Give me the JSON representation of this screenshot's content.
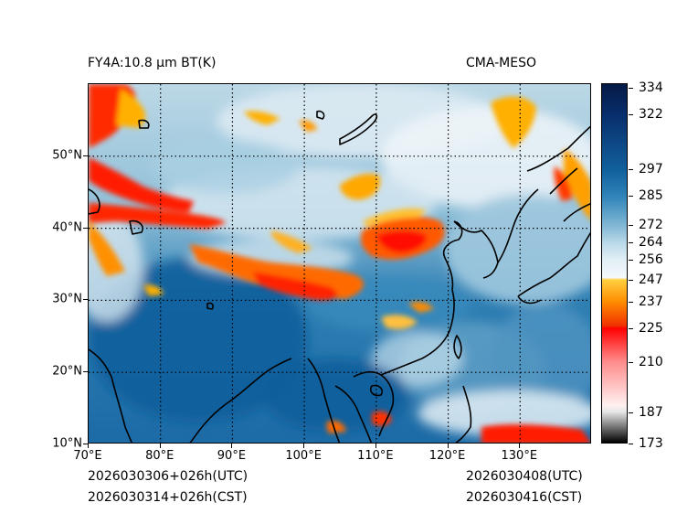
{
  "title_left": "FY4A:10.8 µm BT(K)",
  "title_right": "CMA-MESO",
  "footer": {
    "init_utc": "2026030306+026h(UTC)",
    "init_cst": "2026030314+026h(CST)",
    "valid_utc": "2026030408(UTC)",
    "valid_cst": "2026030416(CST)"
  },
  "map": {
    "lon_min": 70,
    "lon_max": 140,
    "lat_min": 10,
    "lat_max": 60,
    "lon_ticks": [
      {
        "value": 70,
        "label": "70°E"
      },
      {
        "value": 80,
        "label": "80°E"
      },
      {
        "value": 90,
        "label": "90°E"
      },
      {
        "value": 100,
        "label": "100°E"
      },
      {
        "value": 110,
        "label": "110°E"
      },
      {
        "value": 120,
        "label": "120°E"
      },
      {
        "value": 130,
        "label": "130°E"
      }
    ],
    "lat_ticks": [
      {
        "value": 10,
        "label": "10°N"
      },
      {
        "value": 20,
        "label": "20°N"
      },
      {
        "value": 30,
        "label": "30°N"
      },
      {
        "value": 40,
        "label": "40°N"
      },
      {
        "value": 50,
        "label": "50°N"
      }
    ],
    "gridline_style": "dotted"
  },
  "colorbar": {
    "min": 173,
    "max": 336,
    "ticks": [
      {
        "value": 173,
        "label": "173"
      },
      {
        "value": 187,
        "label": "187"
      },
      {
        "value": 210,
        "label": "210"
      },
      {
        "value": 225,
        "label": "225"
      },
      {
        "value": 237,
        "label": "237"
      },
      {
        "value": 247,
        "label": "247"
      },
      {
        "value": 256,
        "label": "256"
      },
      {
        "value": 264,
        "label": "264"
      },
      {
        "value": 272,
        "label": "272"
      },
      {
        "value": 285,
        "label": "285"
      },
      {
        "value": 297,
        "label": "297"
      },
      {
        "value": 322,
        "label": "322"
      },
      {
        "value": 334,
        "label": "334"
      }
    ],
    "stops": [
      {
        "value": 173,
        "color": "#000000"
      },
      {
        "value": 187,
        "color": "#e6e6e6"
      },
      {
        "value": 190,
        "color": "#fff0f0"
      },
      {
        "value": 210,
        "color": "#ff8a8a"
      },
      {
        "value": 225,
        "color": "#ff0000"
      },
      {
        "value": 226,
        "color": "#f03000"
      },
      {
        "value": 237,
        "color": "#ff8c00"
      },
      {
        "value": 247,
        "color": "#ffd040"
      },
      {
        "value": 248,
        "color": "#f4f8fb"
      },
      {
        "value": 256,
        "color": "#e2eff6"
      },
      {
        "value": 264,
        "color": "#b8d8e8"
      },
      {
        "value": 272,
        "color": "#7fb6d4"
      },
      {
        "value": 285,
        "color": "#2f84b8"
      },
      {
        "value": 297,
        "color": "#11609c"
      },
      {
        "value": 322,
        "color": "#082e6c"
      },
      {
        "value": 336,
        "color": "#051a45"
      }
    ]
  }
}
